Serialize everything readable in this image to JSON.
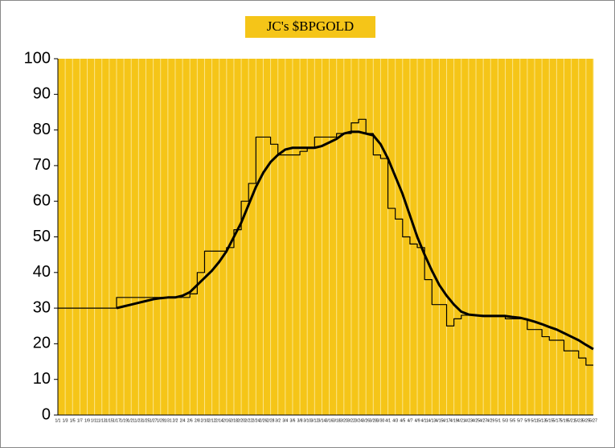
{
  "chart_data": {
    "type": "line",
    "title": "JC's $BPGOLD",
    "categories": [
      "1/1",
      "1/3",
      "1/5",
      "1/7",
      "1/9",
      "1/11",
      "1/13",
      "1/15",
      "1/17",
      "1/19",
      "1/21",
      "1/23",
      "1/25",
      "1/27",
      "1/29",
      "1/31",
      "2/2",
      "2/4",
      "2/6",
      "2/8",
      "2/10",
      "2/12",
      "2/14",
      "2/16",
      "2/18",
      "2/20",
      "2/22",
      "2/24",
      "2/26",
      "2/28",
      "3/2",
      "3/4",
      "3/6",
      "3/8",
      "3/10",
      "3/12",
      "3/14",
      "3/16",
      "3/18",
      "3/20",
      "3/22",
      "3/24",
      "3/26",
      "3/28",
      "3/30",
      "4/1",
      "4/3",
      "4/5",
      "4/7",
      "4/9",
      "4/11",
      "4/13",
      "4/15",
      "4/17",
      "4/19",
      "4/21",
      "4/23",
      "4/25",
      "4/27",
      "4/29",
      "5/1",
      "5/3",
      "5/5",
      "5/7",
      "5/9",
      "5/11",
      "5/13",
      "5/15",
      "5/17",
      "5/19",
      "5/21",
      "5/23",
      "5/25",
      "5/27"
    ],
    "series": [
      {
        "color": "#000000",
        "width": 1.2,
        "step": true,
        "values": [
          30,
          30,
          30,
          30,
          30,
          30,
          30,
          30,
          33,
          33,
          33,
          33,
          33,
          33,
          33,
          33,
          33,
          33,
          34,
          40,
          46,
          46,
          46,
          47,
          52,
          60,
          65,
          78,
          78,
          76,
          73,
          73,
          73,
          74,
          75,
          78,
          78,
          78,
          79,
          79,
          82,
          83,
          79,
          73,
          72,
          58,
          55,
          50,
          48,
          47,
          38,
          31,
          31,
          25,
          27,
          28,
          28,
          28,
          28,
          28,
          28,
          27,
          27,
          27,
          24,
          24,
          22,
          21,
          21,
          18,
          18,
          16,
          14,
          14
        ]
      },
      {
        "color": "#000000",
        "width": 3,
        "step": false,
        "values": [
          null,
          null,
          null,
          null,
          null,
          null,
          null,
          null,
          30,
          30.5,
          31,
          31.5,
          32,
          32.5,
          32.8,
          33,
          33,
          33.5,
          34.5,
          36.5,
          38.5,
          40.5,
          43,
          46,
          50,
          54,
          59,
          64,
          68,
          71,
          73,
          74.5,
          75,
          75,
          75,
          75,
          75.5,
          76.5,
          77.5,
          79,
          79.5,
          79.5,
          79,
          78.5,
          76,
          72,
          67,
          62,
          56,
          50,
          45,
          40.5,
          36.5,
          33.5,
          31,
          29,
          28.2,
          28,
          27.8,
          27.8,
          27.8,
          27.8,
          27.5,
          27.3,
          26.8,
          26.2,
          25.5,
          24.7,
          24,
          23,
          22,
          21,
          19.7,
          18.5
        ]
      }
    ],
    "ylim": [
      0,
      100
    ],
    "yticks": [
      0,
      10,
      20,
      30,
      40,
      50,
      60,
      70,
      80,
      90,
      100
    ],
    "plot_color": "#F5C518",
    "grid": true
  }
}
